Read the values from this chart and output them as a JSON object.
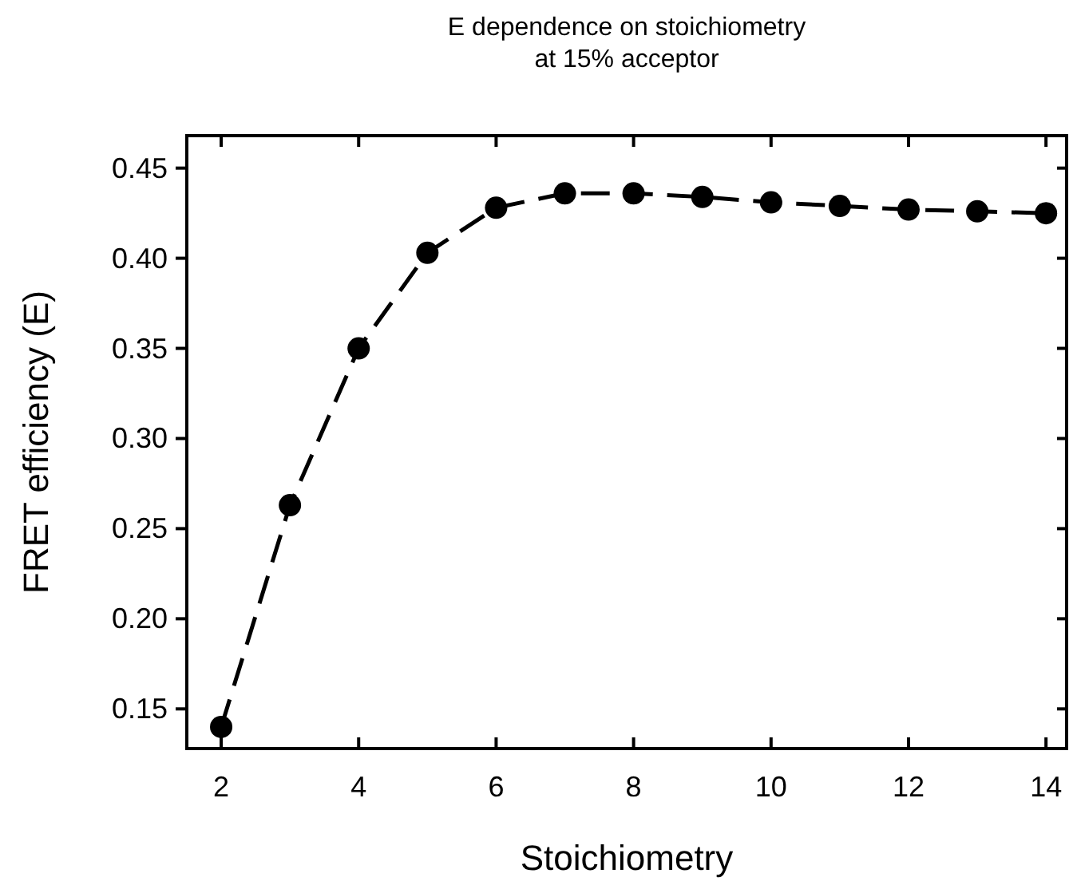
{
  "chart_data": {
    "type": "line",
    "title": "E dependence on stoichiometry\nat 15% acceptor",
    "xlabel": "Stoichiometry",
    "ylabel": "FRET efficiency (E)",
    "x": [
      2,
      3,
      4,
      5,
      6,
      7,
      8,
      9,
      10,
      11,
      12,
      13,
      14
    ],
    "series": [
      {
        "color": "#000000",
        "values": [
          0.14,
          0.263,
          0.35,
          0.403,
          0.428,
          0.436,
          0.436,
          0.434,
          0.431,
          0.429,
          0.427,
          0.426,
          0.425
        ]
      }
    ],
    "xlim": [
      1.5,
      14.3
    ],
    "ylim": [
      0.128,
      0.468
    ],
    "xticks": [
      2,
      4,
      6,
      8,
      10,
      12,
      14
    ],
    "yticks": [
      {
        "value": 0.15,
        "label": "0.15"
      },
      {
        "value": 0.2,
        "label": "0.20"
      },
      {
        "value": 0.25,
        "label": "0.25"
      },
      {
        "value": 0.3,
        "label": "0.30"
      },
      {
        "value": 0.35,
        "label": "0.35"
      },
      {
        "value": 0.4,
        "label": "0.40"
      },
      {
        "value": 0.45,
        "label": "0.45"
      }
    ],
    "marker": "circle",
    "line_style": "dashed"
  }
}
